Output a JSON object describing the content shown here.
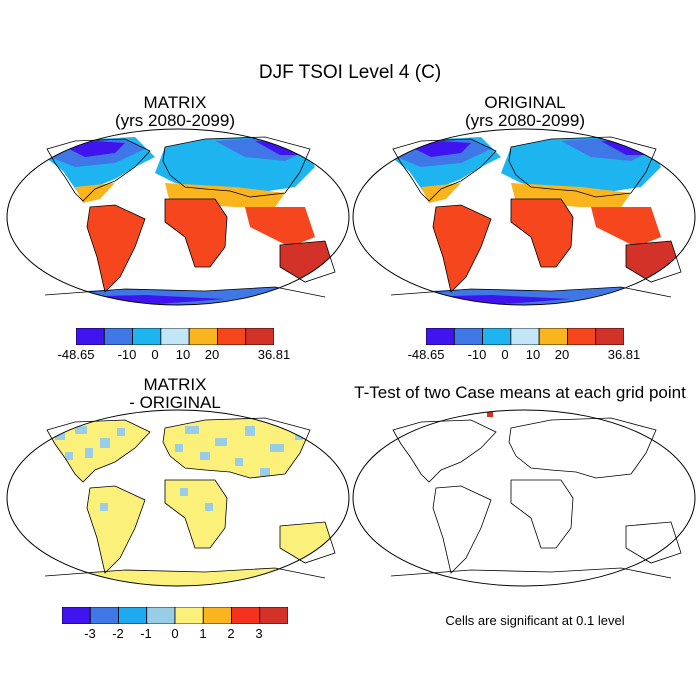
{
  "figure": {
    "title": "DJF TSOI Level 4 (C)"
  },
  "panels": {
    "matrix": {
      "title_line1": "MATRIX",
      "title_line2": "(yrs 2080-2099)"
    },
    "original": {
      "title_line1": "ORIGINAL",
      "title_line2": "(yrs 2080-2099)"
    },
    "diff": {
      "title_line1": "MATRIX",
      "title_line2": "- ORIGINAL"
    },
    "ttest": {
      "title": "T-Test of two Case means at each grid point",
      "note": "Cells are significant at 0.1 level"
    }
  },
  "colorbars": {
    "field": {
      "colors": [
        "#3f14ef",
        "#3f78e6",
        "#1eb4f0",
        "#c2e6f5",
        "#fab41e",
        "#f5461e",
        "#d23228"
      ],
      "labels": [
        "-48.65",
        "-10",
        "0",
        "10",
        "20",
        "36.81"
      ]
    },
    "diff": {
      "colors": [
        "#3f14ef",
        "#3f78e6",
        "#1eaaf0",
        "#99cce6",
        "#faf07a",
        "#fab41e",
        "#f5321e",
        "#d23228"
      ],
      "labels": [
        "-3",
        "-2",
        "-1",
        "0",
        "1",
        "2",
        "3"
      ]
    }
  }
}
